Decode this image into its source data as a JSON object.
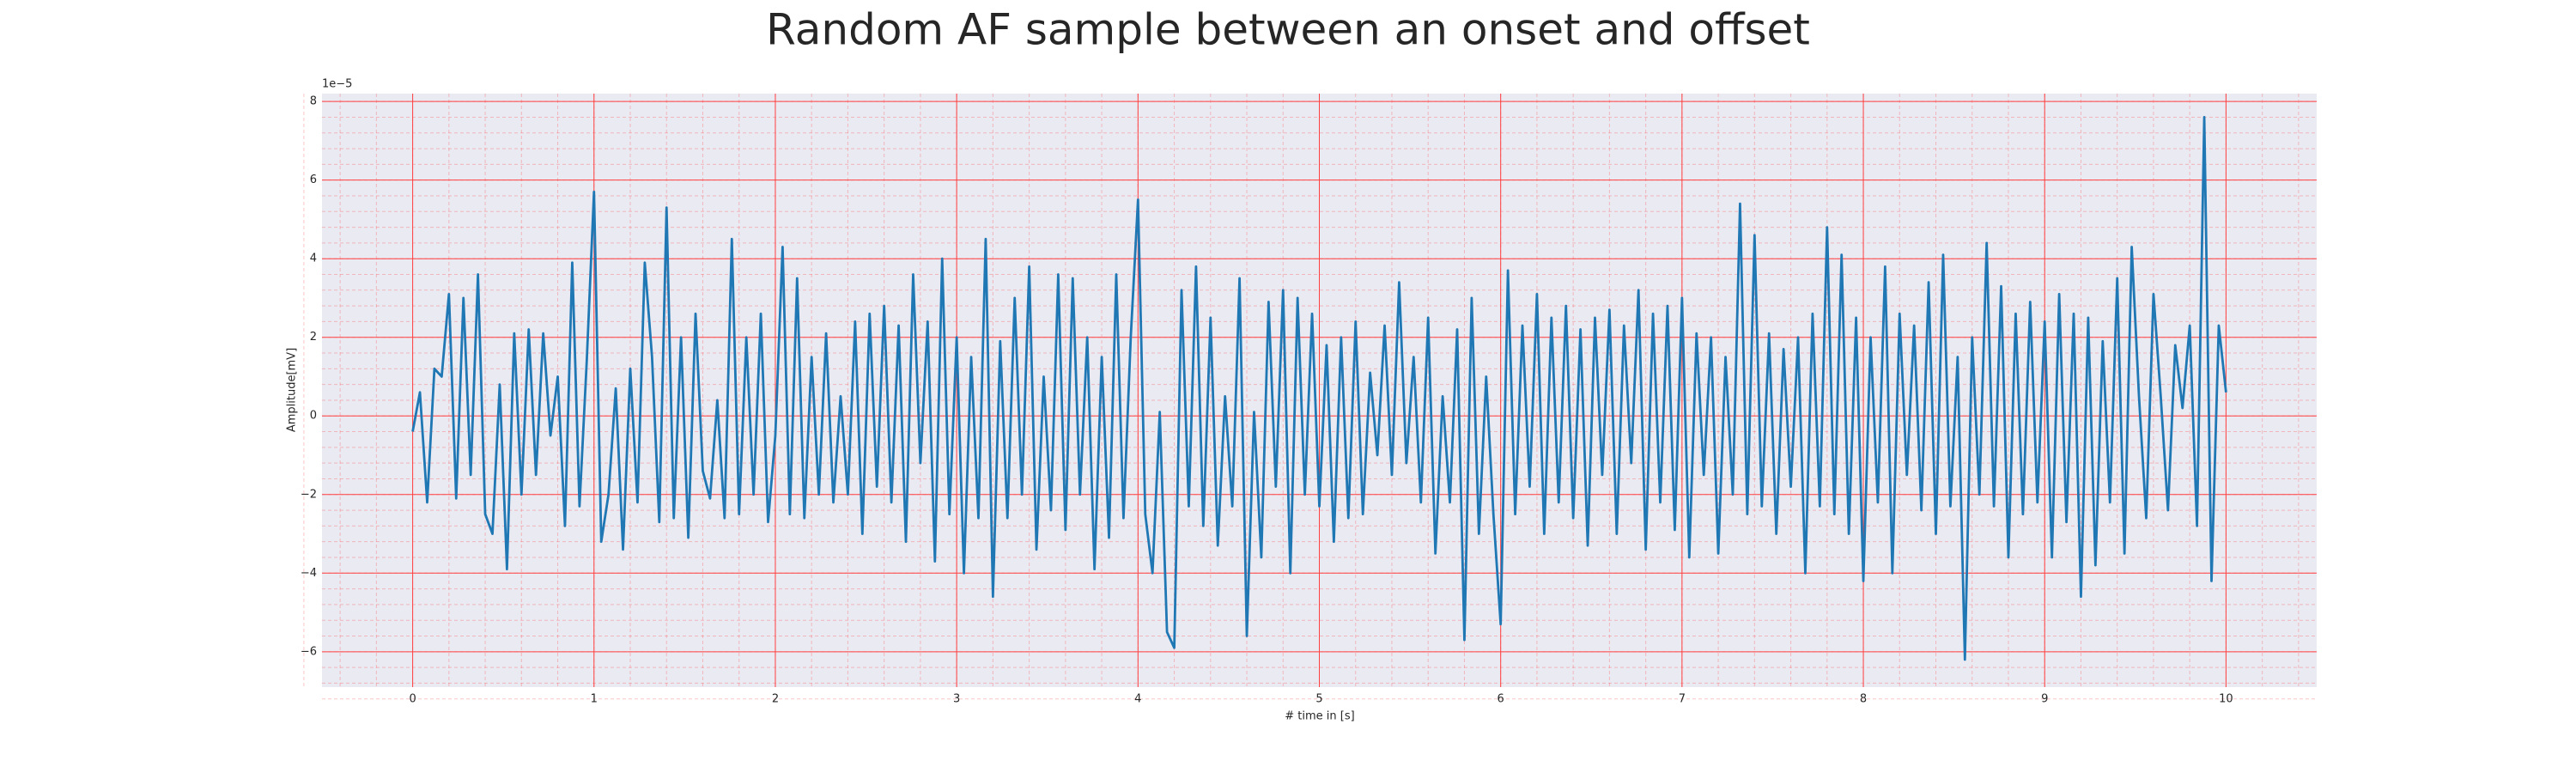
{
  "chart_data": {
    "type": "line",
    "title": "Random AF sample between an onset and offset",
    "xlabel": "# time in [s]",
    "ylabel": "Amplitude[mV]",
    "y_offset_label": "1e−5",
    "xlim": [
      -0.5,
      10.5
    ],
    "ylim": [
      -6.9,
      8.2
    ],
    "xticks": [
      0,
      1,
      2,
      3,
      4,
      5,
      6,
      7,
      8,
      9,
      10
    ],
    "yticks": [
      {
        "value": -6,
        "label": "−6"
      },
      {
        "value": -4,
        "label": "−4"
      },
      {
        "value": -2,
        "label": "−2"
      },
      0,
      2,
      4,
      6,
      8
    ],
    "grid": true,
    "grid_color": "#ff4040",
    "minor_grid": true,
    "background": "#eaeaf2",
    "x": [
      0,
      0.04,
      0.08,
      0.12,
      0.16,
      0.2,
      0.24,
      0.28,
      0.32,
      0.36,
      0.4,
      0.44,
      0.48,
      0.52,
      0.56,
      0.6,
      0.64,
      0.68,
      0.72,
      0.76,
      0.8,
      0.84,
      0.88,
      0.92,
      0.96,
      1,
      1.04,
      1.08,
      1.12,
      1.16,
      1.2,
      1.24,
      1.28,
      1.32,
      1.36,
      1.4,
      1.44,
      1.48,
      1.52,
      1.56,
      1.6,
      1.64,
      1.68,
      1.72,
      1.76,
      1.8,
      1.84,
      1.88,
      1.92,
      1.96,
      2,
      2.04,
      2.08,
      2.12,
      2.16,
      2.2,
      2.24,
      2.28,
      2.32,
      2.36,
      2.4,
      2.44,
      2.48,
      2.52,
      2.56,
      2.6,
      2.64,
      2.68,
      2.72,
      2.76,
      2.8,
      2.84,
      2.88,
      2.92,
      2.96,
      3,
      3.04,
      3.08,
      3.12,
      3.16,
      3.2,
      3.24,
      3.28,
      3.32,
      3.36,
      3.4,
      3.44,
      3.48,
      3.52,
      3.56,
      3.6,
      3.64,
      3.68,
      3.72,
      3.76,
      3.8,
      3.84,
      3.88,
      3.92,
      3.96,
      4,
      4.04,
      4.08,
      4.12,
      4.16,
      4.2,
      4.24,
      4.28,
      4.32,
      4.36,
      4.4,
      4.44,
      4.48,
      4.52,
      4.56,
      4.6,
      4.64,
      4.68,
      4.72,
      4.76,
      4.8,
      4.84,
      4.88,
      4.92,
      4.96,
      5,
      5.04,
      5.08,
      5.12,
      5.16,
      5.2,
      5.24,
      5.28,
      5.32,
      5.36,
      5.4,
      5.44,
      5.48,
      5.52,
      5.56,
      5.6,
      5.64,
      5.68,
      5.72,
      5.76,
      5.8,
      5.84,
      5.88,
      5.92,
      5.96,
      6,
      6.04,
      6.08,
      6.12,
      6.16,
      6.2,
      6.24,
      6.28,
      6.32,
      6.36,
      6.4,
      6.44,
      6.48,
      6.52,
      6.56,
      6.6,
      6.64,
      6.68,
      6.72,
      6.76,
      6.8,
      6.84,
      6.88,
      6.92,
      6.96,
      7,
      7.04,
      7.08,
      7.12,
      7.16,
      7.2,
      7.24,
      7.28,
      7.32,
      7.36,
      7.4,
      7.44,
      7.48,
      7.52,
      7.56,
      7.6,
      7.64,
      7.68,
      7.72,
      7.76,
      7.8,
      7.84,
      7.88,
      7.92,
      7.96,
      8,
      8.04,
      8.08,
      8.12,
      8.16,
      8.2,
      8.24,
      8.28,
      8.32,
      8.36,
      8.4,
      8.44,
      8.48,
      8.52,
      8.56,
      8.6,
      8.64,
      8.68,
      8.72,
      8.76,
      8.8,
      8.84,
      8.88,
      8.92,
      8.96,
      9,
      9.04,
      9.08,
      9.12,
      9.16,
      9.2,
      9.24,
      9.28,
      9.32,
      9.36,
      9.4,
      9.44,
      9.48,
      9.52,
      9.56,
      9.6,
      9.64,
      9.68,
      9.72,
      9.76,
      9.8,
      9.84,
      9.88,
      9.92,
      9.96,
      10
    ],
    "series": [
      {
        "color": "#1f77b4",
        "values": [
          -0.4,
          0.6,
          -2.2,
          1.2,
          1.0,
          3.1,
          -2.1,
          3.0,
          -1.5,
          3.6,
          -2.5,
          -3.0,
          0.8,
          -3.9,
          2.1,
          -2.0,
          2.2,
          -1.5,
          2.1,
          -0.5,
          1.0,
          -2.8,
          3.9,
          -2.3,
          1.4,
          5.7,
          -3.2,
          -2.0,
          0.7,
          -3.4,
          1.2,
          -2.2,
          3.9,
          1.5,
          -2.7,
          5.3,
          -2.6,
          2.0,
          -3.1,
          2.6,
          -1.4,
          -2.1,
          0.4,
          -2.6,
          4.5,
          -2.5,
          2.0,
          -2.0,
          2.6,
          -2.7,
          -0.5,
          4.3,
          -2.5,
          3.5,
          -2.6,
          1.5,
          -2.0,
          2.1,
          -2.2,
          0.5,
          -2.0,
          2.4,
          -3.0,
          2.6,
          -1.8,
          2.8,
          -2.2,
          2.3,
          -3.2,
          3.6,
          -1.2,
          2.4,
          -3.7,
          4.0,
          -2.5,
          2.0,
          -4.0,
          1.5,
          -2.6,
          4.5,
          -4.6,
          1.9,
          -2.6,
          3.0,
          -2.0,
          3.8,
          -3.4,
          1.0,
          -2.4,
          3.6,
          -2.9,
          3.5,
          -2.0,
          2.0,
          -3.9,
          1.5,
          -3.1,
          3.6,
          -2.6,
          2.0,
          5.5,
          -2.5,
          -4.0,
          0.1,
          -5.5,
          -5.9,
          3.2,
          -2.3,
          3.8,
          -2.8,
          2.5,
          -3.3,
          0.5,
          -2.3,
          3.5,
          -5.6,
          0.1,
          -3.6,
          2.9,
          -1.8,
          3.2,
          -4.0,
          3.0,
          -2.0,
          2.6,
          -2.3,
          1.8,
          -3.2,
          2.0,
          -2.6,
          2.4,
          -2.5,
          1.1,
          -1.0,
          2.3,
          -1.5,
          3.4,
          -1.2,
          1.5,
          -2.2,
          2.5,
          -3.5,
          0.5,
          -2.2,
          2.2,
          -5.7,
          3.0,
          -3.0,
          1.0,
          -2.5,
          -5.3,
          3.7,
          -2.5,
          2.3,
          -1.8,
          3.1,
          -3.0,
          2.5,
          -2.2,
          2.8,
          -2.6,
          2.2,
          -3.3,
          2.5,
          -1.5,
          2.7,
          -3.0,
          2.3,
          -1.2,
          3.2,
          -3.4,
          2.6,
          -2.2,
          2.8,
          -2.9,
          3.0,
          -3.6,
          2.1,
          -1.5,
          2.0,
          -3.5,
          1.5,
          -2.0,
          5.4,
          -2.5,
          4.6,
          -2.3,
          2.1,
          -3.0,
          1.7,
          -1.8,
          2.0,
          -4.0,
          2.6,
          -2.3,
          4.8,
          -2.5,
          4.1,
          -3.0,
          2.5,
          -4.2,
          2.0,
          -2.2,
          3.8,
          -4.0,
          2.6,
          -1.5,
          2.3,
          -2.4,
          3.4,
          -3.0,
          4.1,
          -2.3,
          1.5,
          -6.2,
          2.0,
          -2.0,
          4.4,
          -2.3,
          3.3,
          -3.6,
          2.6,
          -2.5,
          2.9,
          -2.2,
          2.4,
          -3.6,
          3.1,
          -2.7,
          2.6,
          -4.6,
          2.5,
          -3.8,
          1.9,
          -2.2,
          3.5,
          -3.5,
          4.3,
          0.5,
          -2.6,
          3.1,
          0.5,
          -2.4,
          1.8,
          0.2,
          2.3,
          -2.8,
          7.6,
          -4.2,
          2.3,
          0.6
        ]
      }
    ]
  }
}
